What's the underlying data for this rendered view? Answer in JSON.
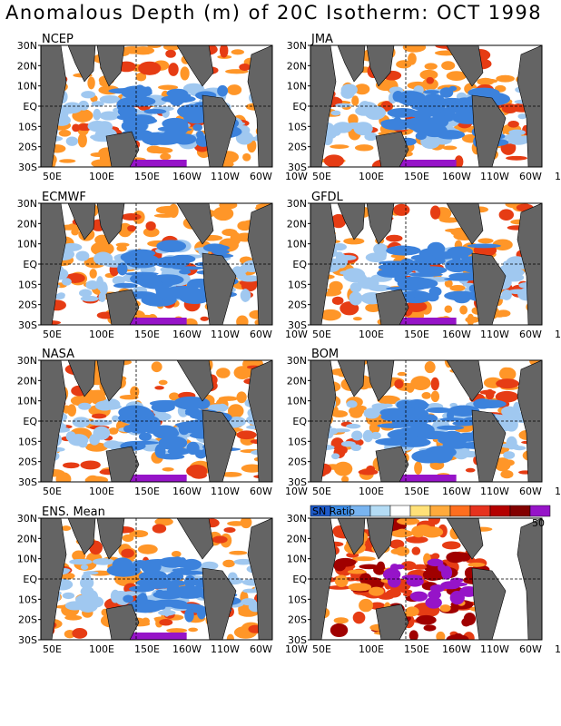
{
  "title": "Anomalous Depth (m) of 20C Isotherm: OCT 1998",
  "lat_ticks": [
    "30N",
    "20N",
    "10N",
    "EQ",
    "10S",
    "20S",
    "30S"
  ],
  "lon_ticks": [
    "50E",
    "100E",
    "150E",
    "160W",
    "110W",
    "60W",
    "10W"
  ],
  "panels": [
    {
      "label": "NCEP"
    },
    {
      "label": "JMA"
    },
    {
      "label": "ECMWF"
    },
    {
      "label": "GFDL"
    },
    {
      "label": "NASA"
    },
    {
      "label": "BOM"
    },
    {
      "label": "ENS. Mean"
    },
    {
      "label": ""
    }
  ],
  "legend": {
    "label": "SN Ratio",
    "max_label": "50",
    "colors": [
      "#1e5ac8",
      "#3c8ce6",
      "#78b4f0",
      "#b4dcf5",
      "#ffffff",
      "#ffe178",
      "#ffaa3c",
      "#ff6e1e",
      "#e6321e",
      "#b40000",
      "#820000",
      "#9614c8"
    ]
  },
  "colors": {
    "land": "#646464",
    "deep_blue": "#3c82dc",
    "light_blue": "#a0c8f0",
    "orange": "#ff9628",
    "red": "#e63c14",
    "dark_red": "#a00000",
    "purple": "#9614c8"
  }
}
